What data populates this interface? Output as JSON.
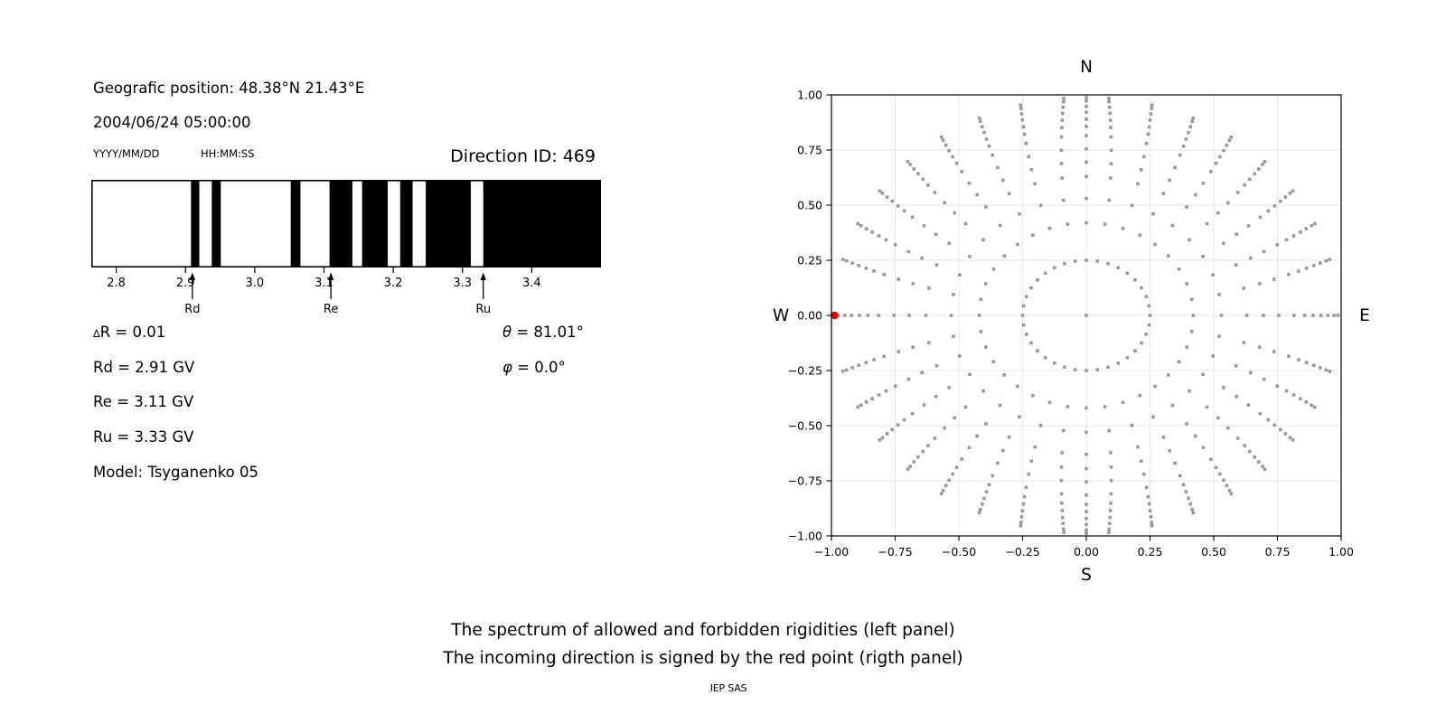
{
  "header": {
    "geo": "Geografic position: 48.38°N 21.43°E",
    "datetime": "2004/06/24 05:00:00",
    "fmt_date": "YYYY/MM/DD",
    "fmt_time": "HH:MM:SS",
    "direction_id": "Direction ID: 469"
  },
  "stats": {
    "delta_sym": "∆",
    "delta_rest": "R = 0.01",
    "rd": "Rd = 2.91 GV",
    "re": "Re = 3.11 GV",
    "ru": "Ru = 3.33 GV",
    "model": "Model: Tsyganenko 05",
    "theta_sym": "θ",
    "theta_rest": " = 81.01°",
    "phi_sym": "φ",
    "phi_rest": " = 0.0°"
  },
  "caption": {
    "line1": "The spectrum of allowed and forbidden rigidities (left panel)",
    "line2": "The incoming direction is signed by the red point (rigth panel)",
    "credit": "IEP SAS"
  },
  "chart_data": [
    {
      "type": "bar",
      "subtype": "rigidity-spectrum-barcode",
      "title": "The spectrum of allowed and forbidden rigidities",
      "x_unit": "GV",
      "x_range": [
        2.764,
        3.5
      ],
      "x_ticks": [
        2.8,
        2.9,
        3.0,
        3.1,
        3.2,
        3.3,
        3.4
      ],
      "x_tick_labels": [
        "2.8",
        "2.9",
        "3.0",
        "3.1",
        "3.2",
        "3.3",
        "3.4"
      ],
      "forbidden_intervals_gv": [
        [
          2.908,
          2.92
        ],
        [
          2.938,
          2.951
        ],
        [
          3.052,
          3.066
        ],
        [
          3.108,
          3.141
        ],
        [
          3.155,
          3.192
        ],
        [
          3.21,
          3.228
        ],
        [
          3.247,
          3.312
        ],
        [
          3.33,
          3.5
        ]
      ],
      "allowed_color": "#ffffff",
      "forbidden_color": "#000000",
      "delta_r_gv": 0.01,
      "arrows": [
        {
          "label": "Rd",
          "gv": 2.91
        },
        {
          "label": "Re",
          "gv": 3.11
        },
        {
          "label": "Ru",
          "gv": 3.33
        }
      ]
    },
    {
      "type": "scatter",
      "subtype": "incoming-direction-grid",
      "xlim": [
        -1,
        1
      ],
      "ylim": [
        -1,
        1
      ],
      "x_ticks": [
        -1,
        -0.75,
        -0.5,
        -0.25,
        0,
        0.25,
        0.5,
        0.75,
        1
      ],
      "x_tick_labels": [
        "−1.00",
        "−0.75",
        "−0.50",
        "−0.25",
        "0.00",
        "0.25",
        "0.50",
        "0.75",
        "1.00"
      ],
      "y_ticks": [
        -1,
        -0.75,
        -0.5,
        -0.25,
        0,
        0.25,
        0.5,
        0.75,
        1
      ],
      "y_tick_labels": [
        "−1.00",
        "−0.75",
        "−0.50",
        "−0.25",
        "0.00",
        "0.25",
        "0.50",
        "0.75",
        "1.00"
      ],
      "compass": {
        "n": "N",
        "e": "E",
        "s": "S",
        "w": "W"
      },
      "grid": true,
      "grid_color": "#e7e7e7",
      "dot_color": "#8f8f8f",
      "dot_size_px": 3.6,
      "generator": {
        "azimuth_step_deg": 10,
        "ring_radii": [
          0.25,
          0.42,
          0.53,
          0.63,
          0.695,
          0.755,
          0.815,
          0.857,
          0.89,
          0.921,
          0.948,
          0.973,
          0.988
        ],
        "center_dot": true,
        "tip_drift_max_deg": 5,
        "tip_drift_start_r": 0.5,
        "drift_toward": "NS-axis"
      },
      "n_directions": 469,
      "red_point": {
        "x": -0.988,
        "y": 0.0,
        "color": "#e60000",
        "radius_px": 4.3
      }
    }
  ]
}
